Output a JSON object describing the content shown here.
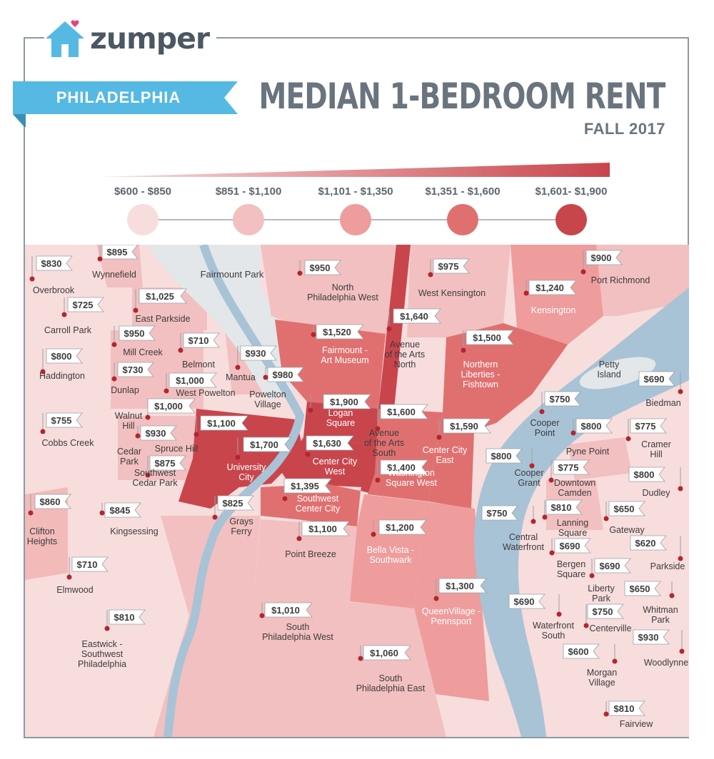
{
  "brand": {
    "name": "zumper"
  },
  "header": {
    "city": "PHILADELPHIA",
    "title": "MEDIAN 1-BEDROOM RENT",
    "season": "FALL 2017"
  },
  "legend": {
    "bins": [
      {
        "label": "$600 - $850",
        "color": "#f8dddd"
      },
      {
        "label": "$851 - $1,100",
        "color": "#f2c0c0"
      },
      {
        "label": "$1,101 - $1,350",
        "color": "#ee9c9c"
      },
      {
        "label": "$1,351 - $1,600",
        "color": "#e07070"
      },
      {
        "label": "$1,601- $1,900",
        "color": "#c8454c"
      }
    ]
  },
  "colors": {
    "water": "#a8c3d6",
    "park": "#e3e7ea",
    "ribbon": "#55b9e3",
    "ribbon_dark": "#3a8fb4",
    "brand_house": "#55b9e3",
    "brand_heart": "#e8437f",
    "pin": "#b3262e",
    "text_dark": "#3c3c3c"
  },
  "map_data": {
    "parks": [
      "Fairmount Park"
    ],
    "neighborhoods": [
      {
        "name": "Overbrook",
        "price": "$830"
      },
      {
        "name": "Wynnefield",
        "price": "$895"
      },
      {
        "name": "Carroll Park",
        "price": "$725"
      },
      {
        "name": "East Parkside",
        "price": "$1,025"
      },
      {
        "name": "Mill Creek",
        "price": "$950"
      },
      {
        "name": "Haddington",
        "price": "$800"
      },
      {
        "name": "Belmont",
        "price": "$710"
      },
      {
        "name": "Mantua",
        "price": "$930"
      },
      {
        "name": "Dunlap",
        "price": "$730"
      },
      {
        "name": "West Powelton",
        "price": "$1,000"
      },
      {
        "name": "Powelton Village",
        "price": "$980"
      },
      {
        "name": "Walnut Hill",
        "price": "$1,000"
      },
      {
        "name": "Cobbs Creek",
        "price": "$755"
      },
      {
        "name": "Spruce Hill",
        "price": "$930"
      },
      {
        "name": "Cedar Park",
        "price": "$1,100"
      },
      {
        "name": "Southwest Cedar Park",
        "price": "$875"
      },
      {
        "name": "University City",
        "price": "$1,700"
      },
      {
        "name": "Clifton Heights",
        "price": "$860"
      },
      {
        "name": "Kingsessing",
        "price": "$845"
      },
      {
        "name": "Elmwood",
        "price": "$710"
      },
      {
        "name": "Eastwick - Southwest Philadelphia",
        "price": "$810"
      },
      {
        "name": "Grays Ferry",
        "price": "$825"
      },
      {
        "name": "North Philadelphia West",
        "price": "$950"
      },
      {
        "name": "Fairmount - Art Museum",
        "price": "$1,520"
      },
      {
        "name": "Logan Square",
        "price": "$1,900"
      },
      {
        "name": "Center City West",
        "price": "$1,630"
      },
      {
        "name": "Southwest Center City",
        "price": "$1,395"
      },
      {
        "name": "Point Breeze",
        "price": "$1,100"
      },
      {
        "name": "South Philadelphia West",
        "price": "$1,010"
      },
      {
        "name": "Avenue of the Arts North",
        "price": "$1,640"
      },
      {
        "name": "Avenue of the Arts South",
        "price": "$1,600"
      },
      {
        "name": "Washington Square West",
        "price": "$1,400"
      },
      {
        "name": "Center City East",
        "price": "$1,590"
      },
      {
        "name": "Bella Vista - Southwark",
        "price": "$1,200"
      },
      {
        "name": "South Philadelphia East",
        "price": "$1,060"
      },
      {
        "name": "QueenVillage - Pennsport",
        "price": "$1,300"
      },
      {
        "name": "West Kensington",
        "price": "$975"
      },
      {
        "name": "Kensington",
        "price": "$1,240"
      },
      {
        "name": "Port Richmond",
        "price": "$900"
      },
      {
        "name": "Northern Liberties - Fishtown",
        "price": "$1,500"
      },
      {
        "name": "Petty Island",
        "price": ""
      },
      {
        "name": "Biedman",
        "price": "$690"
      },
      {
        "name": "Cooper Point",
        "price": "$750"
      },
      {
        "name": "Pyne Point",
        "price": "$800"
      },
      {
        "name": "Cramer Hill",
        "price": "$775"
      },
      {
        "name": "Cooper Grant",
        "price": "$800"
      },
      {
        "name": "Downtown Camden",
        "price": "$775"
      },
      {
        "name": "Dudley",
        "price": "$800"
      },
      {
        "name": "Central Waterfront",
        "price": "$750"
      },
      {
        "name": "Lanning Square",
        "price": "$810"
      },
      {
        "name": "Gateway",
        "price": "$650"
      },
      {
        "name": "Bergen Square",
        "price": "$690"
      },
      {
        "name": "Parkside",
        "price": "$620"
      },
      {
        "name": "Liberty Park",
        "price": "$690"
      },
      {
        "name": "Whitman Park",
        "price": "$650"
      },
      {
        "name": "Waterfront South",
        "price": "$690"
      },
      {
        "name": "Centerville",
        "price": "$750"
      },
      {
        "name": "Woodlynne",
        "price": "$930"
      },
      {
        "name": "Morgan Village",
        "price": "$600"
      },
      {
        "name": "Fairview",
        "price": "$810"
      }
    ]
  }
}
